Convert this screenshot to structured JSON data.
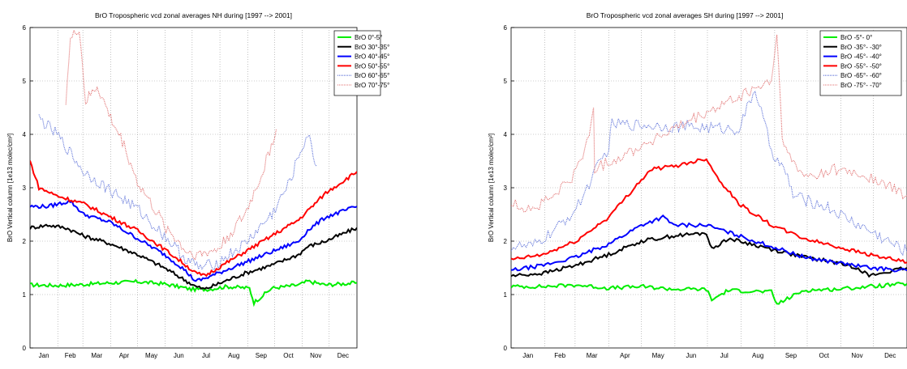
{
  "chart_data": [
    {
      "type": "line",
      "title": "BrO Tropospheric vcd zonal averages NH during [1997 --> 2001]",
      "ylabel": "BrO Vertical column [1e13 molec/cm²]",
      "xlabel": "",
      "xlim": [
        0,
        365
      ],
      "ylim": [
        0,
        6
      ],
      "yticks": [
        "0",
        "1",
        "2",
        "3",
        "4",
        "5",
        "6"
      ],
      "months": [
        "Jan",
        "Feb",
        "Mar",
        "Apr",
        "May",
        "Jun",
        "Jul",
        "Aug",
        "Sep",
        "Oct",
        "Nov",
        "Dec"
      ],
      "grid": true,
      "legend_position": "top-right",
      "series": [
        {
          "name": "BrO 0°-5°",
          "color": "#00ee00",
          "style": "solid",
          "x": [
            0,
            30,
            60,
            90,
            120,
            150,
            180,
            200,
            220,
            245,
            250,
            270,
            300,
            310,
            330,
            365
          ],
          "y": [
            1.18,
            1.17,
            1.19,
            1.22,
            1.24,
            1.2,
            1.1,
            1.1,
            1.15,
            1.12,
            0.85,
            1.12,
            1.18,
            1.25,
            1.18,
            1.22
          ]
        },
        {
          "name": "BrO 30°-35°",
          "color": "#000000",
          "style": "solid",
          "x": [
            0,
            20,
            40,
            60,
            90,
            120,
            150,
            170,
            185,
            195,
            210,
            240,
            270,
            300,
            310,
            330,
            365
          ],
          "y": [
            2.25,
            2.3,
            2.25,
            2.1,
            1.95,
            1.75,
            1.5,
            1.3,
            1.15,
            1.1,
            1.2,
            1.4,
            1.55,
            1.75,
            1.9,
            2.0,
            2.25
          ]
        },
        {
          "name": "BrO 40°-45°",
          "color": "#0000ff",
          "style": "solid",
          "x": [
            0,
            20,
            45,
            60,
            90,
            120,
            150,
            170,
            185,
            195,
            210,
            240,
            270,
            300,
            310,
            330,
            365
          ],
          "y": [
            2.65,
            2.65,
            2.75,
            2.5,
            2.35,
            2.05,
            1.75,
            1.5,
            1.25,
            1.3,
            1.4,
            1.6,
            1.8,
            2.0,
            2.2,
            2.45,
            2.65
          ]
        },
        {
          "name": "BrO 50°-55°",
          "color": "#ff0000",
          "style": "solid",
          "x": [
            0,
            10,
            30,
            60,
            90,
            120,
            150,
            170,
            185,
            195,
            210,
            240,
            270,
            300,
            330,
            365
          ],
          "y": [
            3.5,
            3.0,
            2.85,
            2.7,
            2.45,
            2.2,
            1.85,
            1.6,
            1.4,
            1.35,
            1.5,
            1.8,
            2.1,
            2.4,
            2.9,
            3.3
          ]
        },
        {
          "name": "BrO 60°-65°",
          "color": "#5a6fd8",
          "style": "dotted",
          "x": [
            10,
            30,
            60,
            90,
            120,
            150,
            175,
            190,
            210,
            240,
            270,
            290,
            300,
            310,
            320
          ],
          "y": [
            4.3,
            4.0,
            3.3,
            2.95,
            2.6,
            2.1,
            1.65,
            1.5,
            1.6,
            1.95,
            2.5,
            3.1,
            3.6,
            4.0,
            3.4
          ]
        },
        {
          "name": "BrO 70°-75°",
          "color": "#e06b6b",
          "style": "dotted",
          "x": [
            40,
            45,
            55,
            62,
            75,
            90,
            105,
            120,
            150,
            175,
            190,
            210,
            240,
            260,
            275
          ],
          "y": [
            4.65,
            5.75,
            6.0,
            4.6,
            4.9,
            4.3,
            3.8,
            3.1,
            2.3,
            1.8,
            1.75,
            1.85,
            2.5,
            3.3,
            4.1
          ]
        }
      ]
    },
    {
      "type": "line",
      "title": "BrO Tropospheric vcd zonal averages SH during [1997 --> 2001]",
      "ylabel": "BrO Vertical column [1e13 molec/cm²]",
      "xlabel": "",
      "xlim": [
        0,
        365
      ],
      "ylim": [
        0,
        6
      ],
      "yticks": [
        "0",
        "1",
        "2",
        "3",
        "4",
        "5",
        "6"
      ],
      "months": [
        "Jan",
        "Feb",
        "Mar",
        "Apr",
        "May",
        "Jun",
        "Jul",
        "Aug",
        "Sep",
        "Oct",
        "Nov",
        "Dec"
      ],
      "grid": true,
      "legend_position": "top-right",
      "series": [
        {
          "name": "BrO -5°- 0°",
          "color": "#00ee00",
          "style": "solid",
          "x": [
            0,
            30,
            60,
            90,
            120,
            150,
            180,
            185,
            200,
            240,
            245,
            270,
            300,
            330,
            365
          ],
          "y": [
            1.15,
            1.15,
            1.18,
            1.12,
            1.15,
            1.1,
            1.1,
            0.9,
            1.08,
            1.05,
            0.82,
            1.08,
            1.1,
            1.15,
            1.2
          ]
        },
        {
          "name": "BrO -35°- -30°",
          "color": "#000000",
          "style": "solid",
          "x": [
            0,
            30,
            60,
            90,
            120,
            150,
            180,
            185,
            200,
            240,
            270,
            300,
            320,
            330,
            365
          ],
          "y": [
            1.35,
            1.4,
            1.55,
            1.75,
            2.0,
            2.1,
            2.15,
            1.85,
            2.05,
            1.85,
            1.7,
            1.6,
            1.5,
            1.35,
            1.5
          ]
        },
        {
          "name": "BrO -45°- -40°",
          "color": "#0000ff",
          "style": "solid",
          "x": [
            0,
            30,
            60,
            90,
            120,
            140,
            150,
            180,
            210,
            240,
            270,
            300,
            330,
            365
          ],
          "y": [
            1.45,
            1.55,
            1.7,
            1.95,
            2.3,
            2.45,
            2.3,
            2.3,
            2.1,
            1.9,
            1.7,
            1.6,
            1.5,
            1.45
          ]
        },
        {
          "name": "BrO -55°- -50°",
          "color": "#ff0000",
          "style": "solid",
          "x": [
            0,
            30,
            60,
            90,
            120,
            130,
            150,
            170,
            180,
            190,
            210,
            240,
            270,
            300,
            330,
            365
          ],
          "y": [
            1.65,
            1.75,
            2.0,
            2.45,
            3.15,
            3.35,
            3.4,
            3.5,
            3.55,
            3.2,
            2.7,
            2.3,
            2.05,
            1.9,
            1.75,
            1.6
          ]
        },
        {
          "name": "BrO -65°- -60°",
          "color": "#5a6fd8",
          "style": "dotted",
          "x": [
            0,
            20,
            40,
            60,
            80,
            90,
            93,
            210,
            225,
            240,
            255,
            260,
            290,
            330,
            365
          ],
          "y": [
            1.9,
            1.9,
            2.2,
            2.6,
            3.4,
            3.75,
            4.2,
            4.1,
            4.85,
            3.7,
            3.2,
            2.85,
            2.65,
            2.2,
            1.8
          ]
        },
        {
          "name": "BrO -75°- -70°",
          "color": "#e06b6b",
          "style": "dotted",
          "x": [
            0,
            20,
            40,
            60,
            72,
            76,
            77,
            240,
            245,
            250,
            255,
            270,
            300,
            330,
            365
          ],
          "y": [
            2.7,
            2.6,
            2.85,
            3.3,
            3.95,
            4.55,
            3.35,
            5.0,
            5.85,
            4.0,
            3.6,
            3.2,
            3.35,
            3.2,
            2.85
          ]
        }
      ]
    }
  ]
}
